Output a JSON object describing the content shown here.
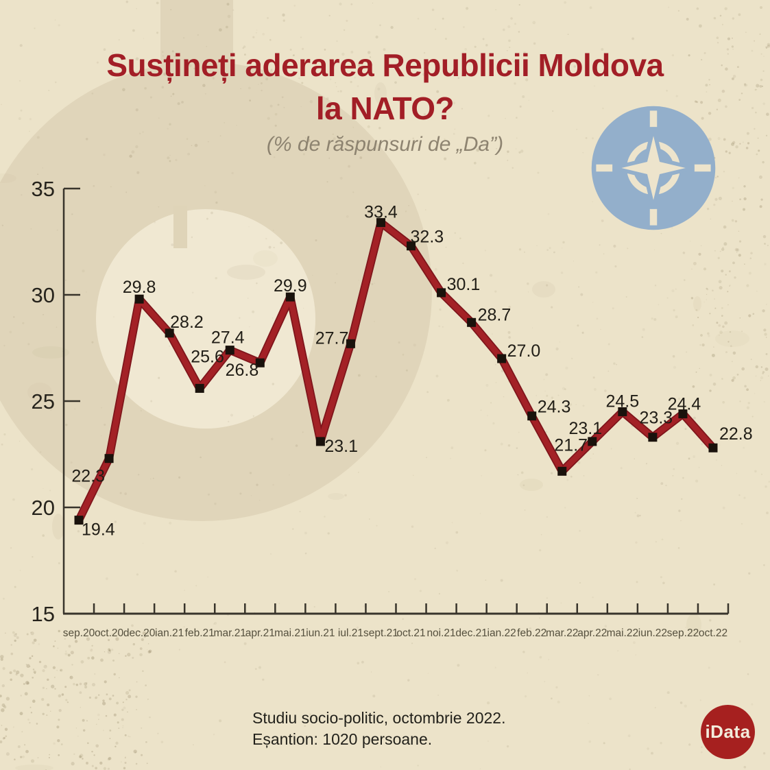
{
  "title": {
    "line1": "Susțineți aderarea Republicii Moldova",
    "line2": "la NATO?"
  },
  "subtitle": "(% de răspunsuri de „Da”)",
  "footer": {
    "line1": "Studiu socio-politic, octombrie 2022.",
    "line2": "Eșantion: 1020 persoane."
  },
  "logos": {
    "idata_label": "iData",
    "nato_icon": "nato-compass"
  },
  "colors": {
    "background": "#ECE3C9",
    "watermark": "#E0D5BA",
    "watermark_hole": "#F0E8D2",
    "title": "#A21E26",
    "subtitle_text": "#8D8370",
    "axis": "#38342B",
    "y_label": "#26231C",
    "tick_label": "#55503E",
    "value_label": "#201D16",
    "line": "#A32126",
    "line_shadow": "#7E151B",
    "marker": "#1A120C",
    "nato_blue": "#93AFCB",
    "nato_cream": "#EDE4CC",
    "idata_red": "#A6201F",
    "footer_text": "#22211B"
  },
  "chart_data": {
    "type": "line",
    "title": "Susțineți aderarea Republicii Moldova la NATO?",
    "subtitle": "(% de răspunsuri de „Da”)",
    "categories": [
      "sep.20",
      "oct.20",
      "dec.20",
      "ian.21",
      "feb.21",
      "mar.21",
      "apr.21",
      "mai.21",
      "iun.21",
      "iul.21",
      "sept.21",
      "oct.21",
      "noi.21",
      "dec.21",
      "ian.22",
      "feb.22",
      "mar.22",
      "apr.22",
      "mai.22",
      "iun.22",
      "sep.22",
      "oct.22"
    ],
    "values": [
      19.4,
      22.3,
      29.8,
      28.2,
      25.6,
      27.4,
      26.8,
      29.9,
      23.1,
      27.7,
      33.4,
      32.3,
      30.1,
      28.7,
      27.0,
      24.3,
      21.7,
      23.1,
      24.5,
      23.3,
      24.4,
      22.8
    ],
    "xlabel": "",
    "ylabel": "",
    "ylim": [
      15,
      35
    ],
    "yticks": [
      15,
      20,
      25,
      30,
      35
    ],
    "grid": false,
    "legend": "none",
    "marker": "square",
    "data_labels": true
  }
}
